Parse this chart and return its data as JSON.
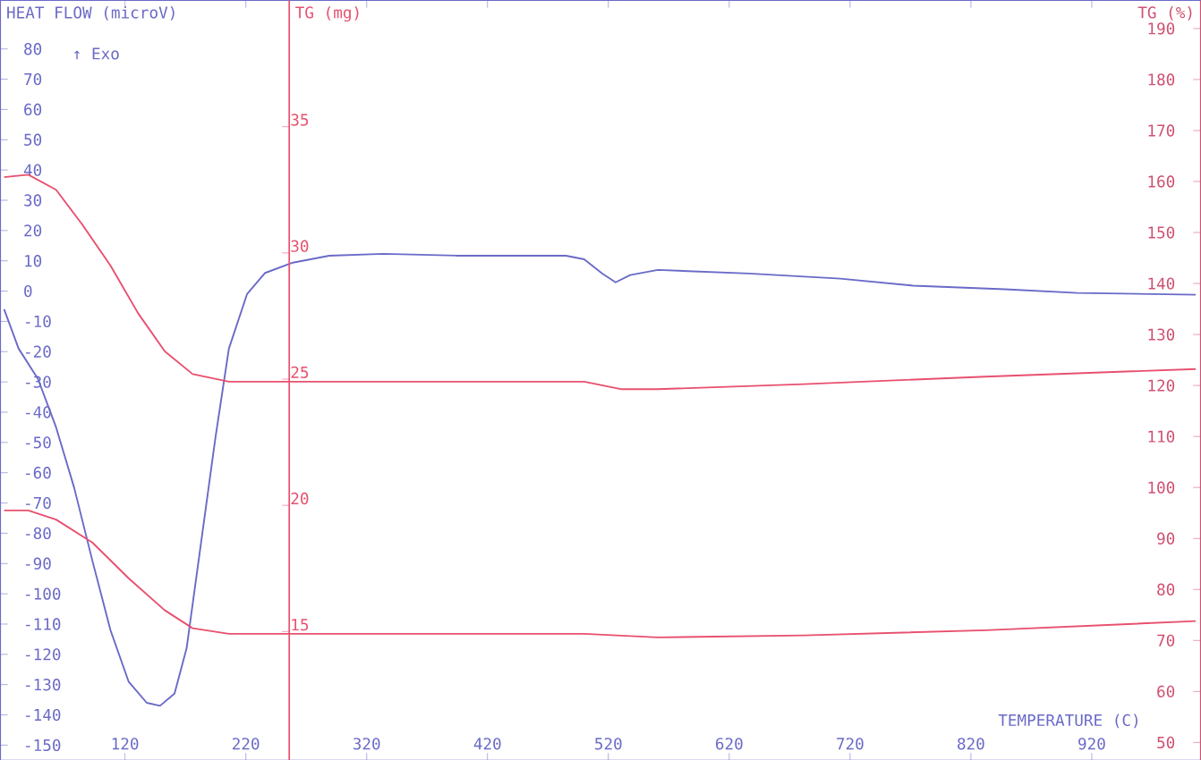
{
  "chart_data": {
    "type": "line",
    "xlabel": "TEMPERATURE (C)",
    "ylabel": "HEAT FLOW (microV)",
    "y2label": "TG (mg)",
    "y3label": "TG (%)",
    "annotations": [
      "↑ Exo"
    ],
    "xlim": [
      17,
      1010
    ],
    "xticks": [
      120,
      220,
      320,
      420,
      520,
      620,
      720,
      820,
      920
    ],
    "ylim": [
      -155,
      96
    ],
    "yticks": [
      -150,
      -140,
      -130,
      -120,
      -110,
      -100,
      -90,
      -80,
      -70,
      -60,
      -50,
      -40,
      -30,
      -20,
      -10,
      0,
      10,
      20,
      30,
      40,
      50,
      60,
      70,
      80
    ],
    "y2lim": [
      9.9,
      40
    ],
    "y2ticks": [
      15,
      20,
      25,
      30,
      35
    ],
    "y3lim": [
      46.5,
      195.5
    ],
    "y3ticks": [
      50,
      60,
      70,
      80,
      90,
      100,
      110,
      120,
      130,
      140,
      150,
      160,
      170,
      180,
      190
    ],
    "ref_lines": [
      {
        "axis": "x",
        "value": 256,
        "color": "#e8506e"
      }
    ],
    "line_style": "solid",
    "marker": "none",
    "series": [
      {
        "color": "#6a6ac8",
        "x": [
          20,
          32,
          48,
          63,
          78,
          93,
          108,
          123,
          138,
          149,
          161,
          171,
          183,
          195,
          206,
          221,
          236,
          259,
          289,
          334,
          395,
          485,
          500,
          515,
          526,
          538,
          561,
          636,
          712,
          772,
          848,
          908,
          1006
        ],
        "values": [
          -6,
          -19,
          -29,
          -45,
          -65,
          -89,
          -112,
          -129,
          -136,
          -137,
          -133,
          -118,
          -83,
          -48,
          -19,
          -1,
          6,
          9.4,
          11.7,
          12.3,
          11.7,
          11.7,
          10.5,
          5.8,
          2.9,
          5.3,
          7,
          5.8,
          4.1,
          1.8,
          0.6,
          -0.6,
          -1.2
        ]
      },
      {
        "color": "#e8506e",
        "axis": "y2",
        "x": [
          20,
          40,
          63,
          85,
          108,
          131,
          153,
          176,
          206,
          259,
          500,
          531,
          561,
          682,
          832,
          1006
        ],
        "values": [
          33.0,
          33.1,
          32.5,
          31.1,
          29.5,
          27.6,
          26.1,
          25.2,
          24.9,
          24.9,
          24.9,
          24.6,
          24.6,
          24.8,
          25.1,
          25.4
        ]
      },
      {
        "color": "#e8506e",
        "axis": "y3",
        "x": [
          20,
          40,
          63,
          93,
          123,
          153,
          176,
          206,
          500,
          561,
          682,
          832,
          1006
        ],
        "values": [
          95.5,
          95.5,
          93.7,
          89.2,
          82.2,
          75.9,
          72.4,
          71.3,
          71.3,
          70.6,
          71,
          72,
          73.8
        ]
      }
    ]
  }
}
